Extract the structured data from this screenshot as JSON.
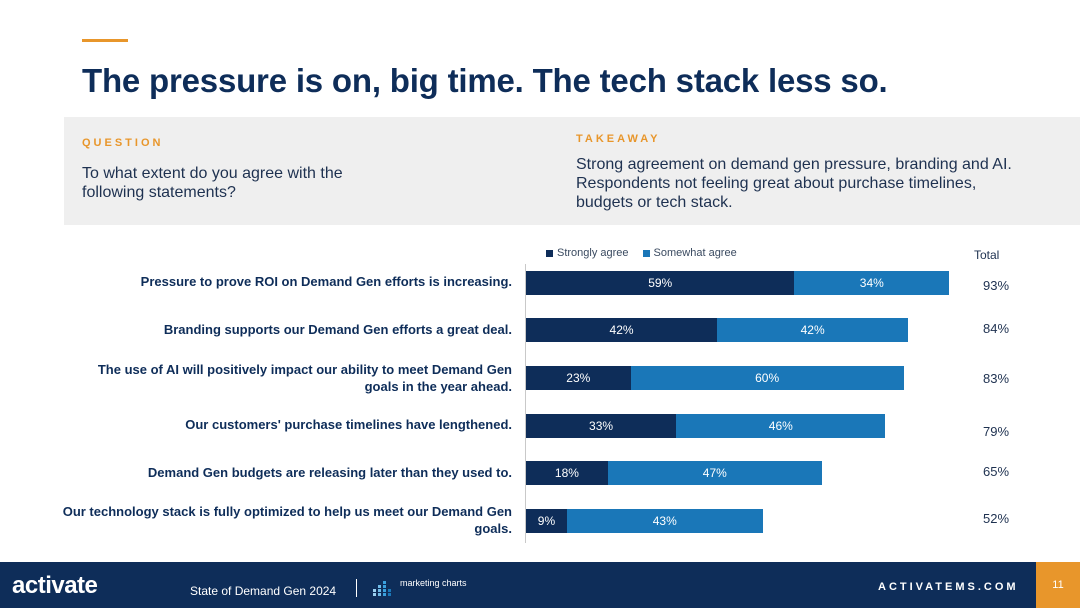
{
  "title": "The pressure is on, big time. The tech stack less so.",
  "question": {
    "label": "QUESTION",
    "text": "To what extent do you agree with the following statements?"
  },
  "takeaway": {
    "label": "TAKEAWAY",
    "text": "Strong agreement on demand gen pressure, branding and AI. Respondents not feeling great about purchase timelines, budgets or tech stack."
  },
  "colors": {
    "strongly": "#0e2d59",
    "somewhat": "#1a77b8",
    "accent": "#e8962b"
  },
  "chart_data": {
    "type": "bar",
    "orientation": "horizontal",
    "stacked": true,
    "categories": [
      "Pressure to prove ROI on Demand Gen efforts is increasing.",
      "Branding supports our Demand Gen efforts a great deal.",
      "The use of AI will positively impact our ability to meet Demand Gen goals in the year ahead.",
      "Our customers' purchase timelines have lengthened.",
      "Demand Gen budgets are releasing later than they used to.",
      "Our technology stack is fully optimized to help us meet our Demand Gen goals."
    ],
    "series": [
      {
        "name": "Strongly agree",
        "values": [
          59,
          42,
          23,
          33,
          18,
          9
        ]
      },
      {
        "name": "Somewhat agree",
        "values": [
          34,
          42,
          60,
          46,
          47,
          43
        ]
      }
    ],
    "totals_label": "Total",
    "totals": [
      "93%",
      "84%",
      "83%",
      "79%",
      "65%",
      "52%"
    ],
    "xlim": [
      0,
      100
    ],
    "unit": "%"
  },
  "footer": {
    "logo": "activate",
    "report": "State of Demand Gen 2024",
    "partner": "marketing charts",
    "url": "ACTIVATEMS.COM",
    "page": "11"
  }
}
